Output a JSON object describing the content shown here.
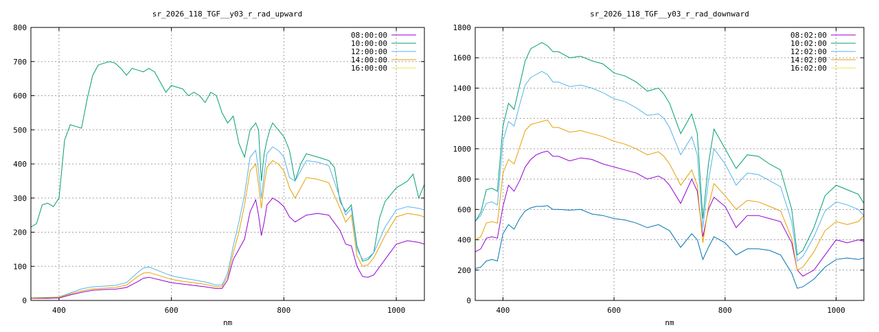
{
  "chart_data": [
    {
      "type": "line",
      "title": "sr_2026_118_TGF__y03_r_rad_upward",
      "xlabel": "nm",
      "ylabel": "",
      "xlim": [
        350,
        1050
      ],
      "ylim": [
        0,
        800
      ],
      "xticks": [
        400,
        600,
        800,
        1000
      ],
      "yticks": [
        0,
        100,
        200,
        300,
        400,
        500,
        600,
        700,
        800
      ],
      "grid": true,
      "legend_position": "top-right",
      "series": [
        {
          "name": "08:00:00",
          "color": "#9400d3",
          "x": [
            350,
            380,
            400,
            420,
            440,
            460,
            480,
            500,
            520,
            540,
            550,
            560,
            580,
            600,
            620,
            640,
            660,
            680,
            690,
            700,
            710,
            720,
            730,
            740,
            750,
            755,
            760,
            765,
            770,
            780,
            790,
            800,
            810,
            820,
            840,
            860,
            880,
            900,
            910,
            920,
            930,
            940,
            950,
            960,
            980,
            1000,
            1020,
            1040,
            1050
          ],
          "y": [
            6,
            6,
            7,
            16,
            24,
            30,
            32,
            33,
            38,
            55,
            65,
            68,
            60,
            52,
            48,
            44,
            40,
            35,
            35,
            60,
            120,
            150,
            180,
            260,
            295,
            250,
            190,
            230,
            280,
            300,
            290,
            275,
            245,
            230,
            250,
            255,
            250,
            205,
            165,
            160,
            100,
            70,
            68,
            75,
            120,
            165,
            175,
            170,
            165
          ]
        },
        {
          "name": "10:00:00",
          "color": "#009e73",
          "x": [
            350,
            360,
            370,
            380,
            390,
            400,
            410,
            420,
            430,
            440,
            450,
            460,
            470,
            480,
            490,
            500,
            510,
            520,
            530,
            540,
            550,
            560,
            570,
            580,
            590,
            600,
            610,
            620,
            630,
            640,
            650,
            660,
            670,
            680,
            690,
            700,
            710,
            720,
            730,
            740,
            750,
            755,
            760,
            765,
            770,
            775,
            780,
            790,
            800,
            810,
            820,
            830,
            840,
            850,
            860,
            870,
            880,
            890,
            900,
            910,
            920,
            930,
            940,
            950,
            960,
            970,
            980,
            990,
            1000,
            1010,
            1020,
            1030,
            1040,
            1050
          ],
          "y": [
            215,
            225,
            280,
            285,
            275,
            300,
            470,
            515,
            510,
            505,
            590,
            660,
            690,
            695,
            700,
            695,
            680,
            660,
            680,
            675,
            670,
            680,
            670,
            640,
            610,
            630,
            625,
            620,
            600,
            610,
            600,
            580,
            610,
            600,
            550,
            520,
            540,
            460,
            420,
            500,
            520,
            500,
            350,
            430,
            470,
            500,
            520,
            500,
            480,
            440,
            350,
            400,
            430,
            425,
            420,
            415,
            410,
            390,
            290,
            260,
            280,
            160,
            115,
            120,
            140,
            240,
            290,
            310,
            330,
            340,
            350,
            370,
            300,
            340
          ]
        },
        {
          "name": "12:00:00",
          "color": "#56b4e9",
          "x": [
            350,
            380,
            400,
            420,
            440,
            460,
            480,
            500,
            520,
            540,
            550,
            560,
            580,
            600,
            620,
            640,
            660,
            680,
            690,
            700,
            710,
            720,
            730,
            740,
            750,
            755,
            760,
            765,
            770,
            780,
            790,
            800,
            810,
            820,
            840,
            860,
            880,
            900,
            910,
            920,
            930,
            940,
            950,
            960,
            980,
            1000,
            1020,
            1040,
            1050
          ],
          "y": [
            8,
            9,
            10,
            22,
            34,
            40,
            42,
            44,
            52,
            82,
            95,
            98,
            85,
            72,
            66,
            60,
            54,
            45,
            45,
            80,
            160,
            230,
            310,
            420,
            440,
            380,
            300,
            370,
            430,
            450,
            440,
            420,
            360,
            350,
            410,
            405,
            395,
            300,
            250,
            270,
            150,
            120,
            125,
            140,
            215,
            265,
            275,
            270,
            265
          ]
        },
        {
          "name": "14:00:00",
          "color": "#e69f00",
          "x": [
            350,
            380,
            400,
            420,
            440,
            460,
            480,
            500,
            520,
            540,
            550,
            560,
            580,
            600,
            620,
            640,
            660,
            680,
            690,
            700,
            710,
            720,
            730,
            740,
            750,
            755,
            760,
            765,
            770,
            780,
            790,
            800,
            810,
            820,
            840,
            860,
            880,
            900,
            910,
            920,
            930,
            940,
            950,
            960,
            980,
            1000,
            1020,
            1040,
            1050
          ],
          "y": [
            7,
            8,
            9,
            19,
            28,
            34,
            36,
            38,
            45,
            70,
            80,
            82,
            72,
            62,
            56,
            52,
            47,
            40,
            40,
            70,
            140,
            200,
            280,
            380,
            400,
            340,
            270,
            340,
            390,
            410,
            400,
            380,
            330,
            300,
            360,
            355,
            345,
            270,
            230,
            250,
            130,
            100,
            105,
            125,
            190,
            245,
            255,
            250,
            245
          ]
        },
        {
          "name": "16:00:00",
          "color": "#f0e442",
          "x": [
            350,
            1050
          ],
          "y": [
            null,
            null
          ]
        }
      ]
    },
    {
      "type": "line",
      "title": "sr_2026_118_TGF__y03_r_rad_downward",
      "xlabel": "nm",
      "ylabel": "",
      "xlim": [
        350,
        1050
      ],
      "ylim": [
        0,
        1800
      ],
      "xticks": [
        400,
        600,
        800,
        1000
      ],
      "yticks": [
        0,
        200,
        400,
        600,
        800,
        1000,
        1200,
        1400,
        1600,
        1800
      ],
      "grid": true,
      "legend_position": "top-right",
      "series": [
        {
          "name": "08:02:00",
          "color": "#9400d3",
          "x": [
            350,
            360,
            370,
            380,
            390,
            400,
            410,
            420,
            430,
            440,
            450,
            460,
            470,
            480,
            490,
            500,
            520,
            540,
            560,
            580,
            600,
            620,
            640,
            660,
            680,
            690,
            700,
            720,
            740,
            750,
            760,
            770,
            780,
            800,
            820,
            840,
            860,
            880,
            900,
            920,
            930,
            940,
            960,
            980,
            1000,
            1020,
            1040,
            1050
          ],
          "y": [
            320,
            340,
            410,
            420,
            410,
            620,
            760,
            720,
            790,
            880,
            930,
            960,
            975,
            985,
            950,
            950,
            920,
            940,
            930,
            900,
            880,
            860,
            840,
            800,
            820,
            800,
            760,
            640,
            800,
            720,
            420,
            600,
            680,
            620,
            480,
            560,
            560,
            540,
            520,
            380,
            200,
            160,
            200,
            300,
            400,
            380,
            400,
            390
          ]
        },
        {
          "name": "10:02:00",
          "color": "#009e73",
          "x": [
            350,
            360,
            370,
            380,
            390,
            400,
            410,
            420,
            430,
            440,
            450,
            460,
            470,
            480,
            490,
            500,
            520,
            540,
            560,
            580,
            600,
            620,
            640,
            660,
            680,
            690,
            700,
            720,
            740,
            750,
            760,
            770,
            780,
            800,
            820,
            840,
            860,
            880,
            900,
            920,
            930,
            940,
            960,
            980,
            1000,
            1020,
            1040,
            1050
          ],
          "y": [
            520,
            580,
            730,
            740,
            720,
            1150,
            1300,
            1260,
            1420,
            1580,
            1660,
            1680,
            1700,
            1680,
            1640,
            1640,
            1600,
            1610,
            1580,
            1560,
            1500,
            1480,
            1440,
            1380,
            1400,
            1360,
            1300,
            1100,
            1230,
            1100,
            540,
            900,
            1130,
            1000,
            870,
            960,
            950,
            900,
            860,
            600,
            300,
            330,
            480,
            690,
            760,
            730,
            700,
            640
          ]
        },
        {
          "name": "12:02:00",
          "color": "#56b4e9",
          "x": [
            350,
            360,
            370,
            380,
            390,
            400,
            410,
            420,
            430,
            440,
            450,
            460,
            470,
            480,
            490,
            500,
            520,
            540,
            560,
            580,
            600,
            620,
            640,
            660,
            680,
            690,
            700,
            720,
            740,
            750,
            760,
            770,
            780,
            800,
            820,
            840,
            860,
            880,
            900,
            920,
            930,
            940,
            960,
            980,
            1000,
            1020,
            1040,
            1050
          ],
          "y": [
            520,
            560,
            640,
            650,
            630,
            1050,
            1180,
            1150,
            1290,
            1420,
            1470,
            1490,
            1510,
            1490,
            1440,
            1440,
            1410,
            1420,
            1400,
            1370,
            1330,
            1310,
            1270,
            1220,
            1230,
            1200,
            1140,
            960,
            1080,
            960,
            480,
            790,
            1000,
            900,
            760,
            840,
            830,
            790,
            750,
            520,
            260,
            290,
            420,
            590,
            650,
            630,
            600,
            560
          ]
        },
        {
          "name": "14:02:00",
          "color": "#e69f00",
          "x": [
            350,
            360,
            370,
            380,
            390,
            400,
            410,
            420,
            430,
            440,
            450,
            460,
            470,
            480,
            490,
            500,
            520,
            540,
            560,
            580,
            600,
            620,
            640,
            660,
            680,
            690,
            700,
            720,
            740,
            750,
            760,
            770,
            780,
            800,
            820,
            840,
            860,
            880,
            900,
            920,
            930,
            940,
            960,
            980,
            1000,
            1020,
            1040,
            1050
          ],
          "y": [
            400,
            420,
            510,
            520,
            510,
            840,
            930,
            900,
            1010,
            1120,
            1160,
            1170,
            1180,
            1190,
            1140,
            1140,
            1110,
            1120,
            1100,
            1080,
            1050,
            1030,
            1000,
            960,
            980,
            950,
            900,
            760,
            860,
            760,
            380,
            620,
            770,
            690,
            600,
            660,
            650,
            620,
            590,
            410,
            200,
            220,
            320,
            460,
            520,
            500,
            520,
            560
          ]
        },
        {
          "name": "16:02:00",
          "color": "#f0e442",
          "x": [
            350,
            1050
          ],
          "y": [
            null,
            null
          ]
        },
        {
          "name": "",
          "color": "#0072b2",
          "x": [
            350,
            360,
            370,
            380,
            390,
            400,
            410,
            420,
            430,
            440,
            450,
            460,
            470,
            480,
            490,
            500,
            520,
            540,
            560,
            580,
            600,
            620,
            640,
            660,
            680,
            690,
            700,
            720,
            740,
            750,
            760,
            770,
            780,
            800,
            820,
            840,
            860,
            880,
            900,
            920,
            930,
            940,
            960,
            980,
            1000,
            1020,
            1040,
            1050
          ],
          "y": [
            210,
            220,
            260,
            270,
            260,
            440,
            500,
            470,
            540,
            590,
            610,
            620,
            620,
            625,
            600,
            600,
            595,
            600,
            570,
            560,
            540,
            530,
            510,
            480,
            500,
            480,
            460,
            350,
            440,
            400,
            270,
            350,
            420,
            380,
            300,
            340,
            340,
            330,
            300,
            180,
            80,
            90,
            140,
            220,
            270,
            280,
            270,
            280
          ]
        }
      ]
    }
  ]
}
